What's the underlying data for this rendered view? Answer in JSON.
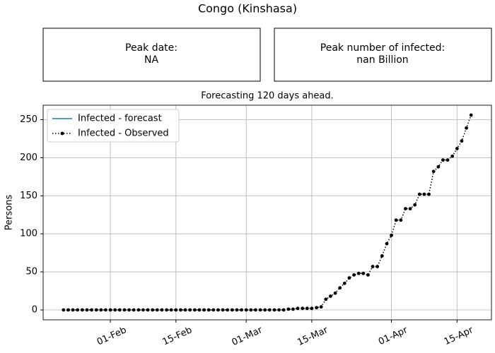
{
  "title": "Congo (Kinshasa)",
  "panels": [
    {
      "label": "Peak date:",
      "value": "NA"
    },
    {
      "label": "Peak number of infected:",
      "value": "nan Billion"
    }
  ],
  "chart_data": {
    "type": "line",
    "title": "Forecasting 120 days ahead.",
    "y_label": "Persons",
    "x": [
      "22-Jan",
      "23-Jan",
      "24-Jan",
      "25-Jan",
      "26-Jan",
      "27-Jan",
      "28-Jan",
      "29-Jan",
      "30-Jan",
      "31-Jan",
      "01-Feb",
      "02-Feb",
      "03-Feb",
      "04-Feb",
      "05-Feb",
      "06-Feb",
      "07-Feb",
      "08-Feb",
      "09-Feb",
      "10-Feb",
      "11-Feb",
      "12-Feb",
      "13-Feb",
      "14-Feb",
      "15-Feb",
      "16-Feb",
      "17-Feb",
      "18-Feb",
      "19-Feb",
      "20-Feb",
      "21-Feb",
      "22-Feb",
      "23-Feb",
      "24-Feb",
      "25-Feb",
      "26-Feb",
      "27-Feb",
      "28-Feb",
      "29-Feb",
      "01-Mar",
      "02-Mar",
      "03-Mar",
      "04-Mar",
      "05-Mar",
      "06-Mar",
      "07-Mar",
      "08-Mar",
      "09-Mar",
      "10-Mar",
      "11-Mar",
      "12-Mar",
      "13-Mar",
      "14-Mar",
      "15-Mar",
      "16-Mar",
      "17-Mar",
      "18-Mar",
      "19-Mar",
      "20-Mar",
      "21-Mar",
      "22-Mar",
      "23-Mar",
      "24-Mar",
      "25-Mar",
      "26-Mar",
      "27-Mar",
      "28-Mar",
      "29-Mar",
      "30-Mar",
      "31-Mar",
      "01-Apr",
      "02-Apr",
      "03-Apr",
      "04-Apr",
      "05-Apr",
      "06-Apr",
      "07-Apr",
      "08-Apr",
      "09-Apr",
      "10-Apr",
      "11-Apr",
      "12-Apr",
      "13-Apr",
      "14-Apr",
      "15-Apr",
      "16-Apr",
      "17-Apr",
      "18-Apr"
    ],
    "series": [
      {
        "name": "Infected - forecast",
        "color": "#1f77b4",
        "style": "solid",
        "values": [
          null,
          null,
          null,
          null,
          null,
          null,
          null,
          null,
          null,
          null,
          null,
          null,
          null,
          null,
          null,
          null,
          null,
          null,
          null,
          null,
          null,
          null,
          null,
          null,
          null,
          null,
          null,
          null,
          null,
          null,
          null,
          null,
          null,
          null,
          null,
          null,
          null,
          null,
          null,
          null,
          null,
          null,
          null,
          null,
          null,
          null,
          null,
          null,
          null,
          null,
          null,
          null,
          null,
          null,
          null,
          null,
          null,
          null,
          null,
          null,
          null,
          null,
          null,
          null,
          null,
          null,
          null,
          null,
          null,
          null,
          null,
          null,
          null,
          null,
          null,
          null,
          null,
          null,
          null,
          null,
          null,
          null,
          null,
          null,
          null,
          null,
          null,
          null
        ]
      },
      {
        "name": "Infected - Observed",
        "color": "#000000",
        "style": "dotted-markers",
        "values": [
          0,
          0,
          0,
          0,
          0,
          0,
          0,
          0,
          0,
          0,
          0,
          0,
          0,
          0,
          0,
          0,
          0,
          0,
          0,
          0,
          0,
          0,
          0,
          0,
          0,
          0,
          0,
          0,
          0,
          0,
          0,
          0,
          0,
          0,
          0,
          0,
          0,
          0,
          0,
          0,
          0,
          0,
          0,
          0,
          0,
          0,
          0,
          0,
          1,
          1,
          2,
          2,
          2,
          2,
          3,
          4,
          14,
          18,
          22,
          29,
          35,
          42,
          46,
          48,
          48,
          46,
          57,
          57,
          71,
          87,
          98,
          118,
          118,
          133,
          133,
          138,
          152,
          152,
          152,
          182,
          188,
          197,
          197,
          202,
          212,
          222,
          239,
          256
        ]
      }
    ],
    "xticks": [
      "01-Feb",
      "15-Feb",
      "01-Mar",
      "15-Mar",
      "01-Apr",
      "15-Apr"
    ],
    "ylim": [
      -13,
      269
    ],
    "yticks": [
      0,
      50,
      100,
      150,
      200,
      250
    ],
    "grid": true,
    "legend": "upper-left"
  }
}
